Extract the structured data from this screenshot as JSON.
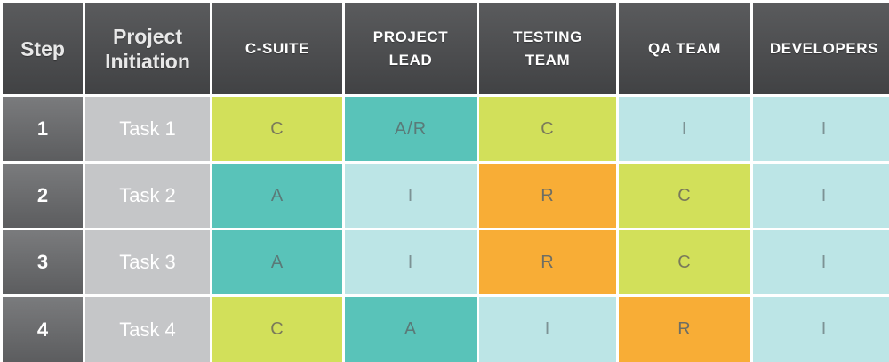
{
  "headers": [
    "Step",
    "Project\nInitiation",
    "C-SUITE",
    "PROJECT\nLEAD",
    "TESTING\nTEAM",
    "QA TEAM",
    "DEVELOPERS"
  ],
  "rows": [
    {
      "step": "1",
      "task": "Task 1",
      "values": [
        "C",
        "A/R",
        "C",
        "I",
        "I"
      ]
    },
    {
      "step": "2",
      "task": "Task 2",
      "values": [
        "A",
        "I",
        "R",
        "C",
        "I"
      ]
    },
    {
      "step": "3",
      "task": "Task 3",
      "values": [
        "A",
        "I",
        "R",
        "C",
        "I"
      ]
    },
    {
      "step": "4",
      "task": "Task 4",
      "values": [
        "C",
        "A",
        "I",
        "R",
        "I"
      ]
    }
  ],
  "colors": {
    "header_bg": "#4a4b4d",
    "step_bg": "#6b6c6e",
    "task_bg": "#c5c6c8",
    "lime": "#d2e05a",
    "teal": "#59c3b9",
    "light_teal": "#bce5e6",
    "orange": "#f8ad36"
  }
}
